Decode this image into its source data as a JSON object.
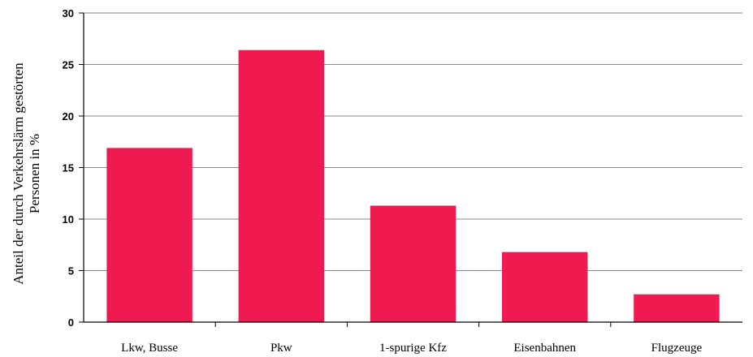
{
  "chart_data": {
    "type": "bar",
    "title": "",
    "xlabel": "",
    "ylabel_lines": [
      "Anteil der durch Verkehrslärm gestörten",
      "Personen in %"
    ],
    "categories": [
      "Lkw, Busse",
      "Pkw",
      "1-spurige Kfz",
      "Eisenbahnen",
      "Flugzeuge"
    ],
    "values": [
      16.9,
      26.4,
      11.3,
      6.8,
      2.7
    ],
    "ylim": [
      0,
      30
    ],
    "yticks": [
      "0",
      "5",
      "10",
      "15",
      "20",
      "25",
      "30"
    ],
    "grid": true,
    "legend": "none",
    "bar_color": "#ee1a50",
    "grid_color": "#8a8a8a"
  }
}
